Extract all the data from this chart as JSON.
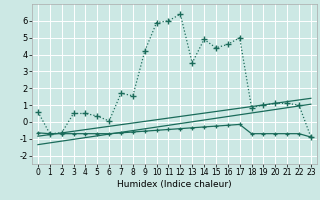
{
  "xlabel": "Humidex (Indice chaleur)",
  "background_color": "#cce8e4",
  "grid_color": "#ffffff",
  "line_color": "#1a6b5a",
  "xlim": [
    -0.5,
    23.5
  ],
  "ylim": [
    -2.5,
    7.0
  ],
  "yticks": [
    -2,
    -1,
    0,
    1,
    2,
    3,
    4,
    5,
    6
  ],
  "xticks": [
    0,
    1,
    2,
    3,
    4,
    5,
    6,
    7,
    8,
    9,
    10,
    11,
    12,
    13,
    14,
    15,
    16,
    17,
    18,
    19,
    20,
    21,
    22,
    23
  ],
  "series1_x": [
    0,
    1,
    2,
    3,
    4,
    5,
    6,
    7,
    8,
    9,
    10,
    11,
    12,
    13,
    14,
    15,
    16,
    17,
    18,
    19,
    20,
    21,
    22,
    23
  ],
  "series1_y": [
    0.6,
    -0.7,
    -0.65,
    0.5,
    0.5,
    0.35,
    0.05,
    1.7,
    1.55,
    4.2,
    5.9,
    6.0,
    6.4,
    3.5,
    4.9,
    4.4,
    4.6,
    5.0,
    0.85,
    1.0,
    1.1,
    1.1,
    1.0,
    -0.9
  ],
  "series2_x": [
    0,
    1,
    2,
    3,
    4,
    5,
    6,
    7,
    8,
    9,
    10,
    11,
    12,
    13,
    14,
    15,
    16,
    17,
    18,
    19,
    20,
    21,
    22,
    23
  ],
  "series2_y": [
    -0.65,
    -0.7,
    -0.7,
    -0.7,
    -0.7,
    -0.7,
    -0.7,
    -0.65,
    -0.6,
    -0.55,
    -0.5,
    -0.45,
    -0.4,
    -0.35,
    -0.3,
    -0.25,
    -0.2,
    -0.15,
    -0.7,
    -0.7,
    -0.7,
    -0.7,
    -0.7,
    -0.9
  ],
  "series3_x": [
    0,
    23
  ],
  "series3_y": [
    -0.85,
    1.4
  ],
  "series4_x": [
    0,
    23
  ],
  "series4_y": [
    -1.35,
    1.05
  ]
}
